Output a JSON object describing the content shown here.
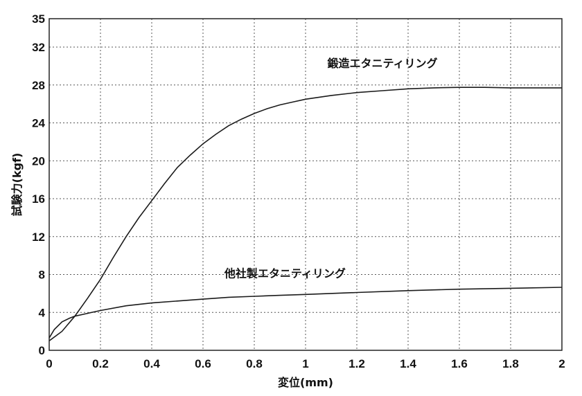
{
  "chart_data": {
    "type": "line",
    "title": "",
    "xlabel": "変位(mm)",
    "ylabel": "試験力(kgf)",
    "xlim": [
      0,
      2
    ],
    "ylim": [
      0,
      35
    ],
    "grid": true,
    "x_ticks": [
      0,
      0.2,
      0.4,
      0.6,
      0.8,
      1,
      1.2,
      1.4,
      1.6,
      1.8,
      2
    ],
    "x_tick_labels": [
      "0",
      "0.2",
      "0.4",
      "0.6",
      "0.8",
      "1",
      "1.2",
      "1.4",
      "1.6",
      "1.8",
      "2"
    ],
    "y_ticks": [
      0,
      4,
      8,
      12,
      16,
      20,
      24,
      28,
      32,
      35
    ],
    "y_tick_labels": [
      "0",
      "4",
      "8",
      "12",
      "16",
      "20",
      "24",
      "28",
      "32",
      "35"
    ],
    "series": [
      {
        "name": "鍛造エタニティリング",
        "x": [
          0,
          0.05,
          0.1,
          0.15,
          0.2,
          0.25,
          0.3,
          0.35,
          0.4,
          0.45,
          0.5,
          0.55,
          0.6,
          0.65,
          0.7,
          0.75,
          0.8,
          0.85,
          0.9,
          0.95,
          1.0,
          1.1,
          1.2,
          1.3,
          1.4,
          1.5,
          1.6,
          1.7,
          1.8,
          1.9,
          2.0
        ],
        "y": [
          1.0,
          2.0,
          3.6,
          5.5,
          7.5,
          9.8,
          12.0,
          14.0,
          15.8,
          17.6,
          19.3,
          20.6,
          21.8,
          22.8,
          23.7,
          24.4,
          25.0,
          25.5,
          25.9,
          26.2,
          26.5,
          26.9,
          27.2,
          27.4,
          27.6,
          27.7,
          27.75,
          27.75,
          27.7,
          27.7,
          27.7
        ]
      },
      {
        "name": "他社製エタニティリング",
        "x": [
          0,
          0.02,
          0.05,
          0.08,
          0.1,
          0.15,
          0.2,
          0.3,
          0.4,
          0.5,
          0.6,
          0.7,
          0.8,
          0.9,
          1.0,
          1.2,
          1.4,
          1.6,
          1.8,
          2.0
        ],
        "y": [
          1.3,
          2.2,
          3.0,
          3.4,
          3.6,
          3.9,
          4.2,
          4.7,
          5.0,
          5.2,
          5.4,
          5.6,
          5.7,
          5.8,
          5.9,
          6.1,
          6.3,
          6.45,
          6.55,
          6.65
        ]
      }
    ],
    "annotations": [
      {
        "text": "鍛造エタニティリング",
        "series_index": 0,
        "x": 1.3,
        "y": 29.9
      },
      {
        "text": "他社製エタニティリング",
        "series_index": 1,
        "x": 0.92,
        "y": 7.7
      }
    ]
  }
}
